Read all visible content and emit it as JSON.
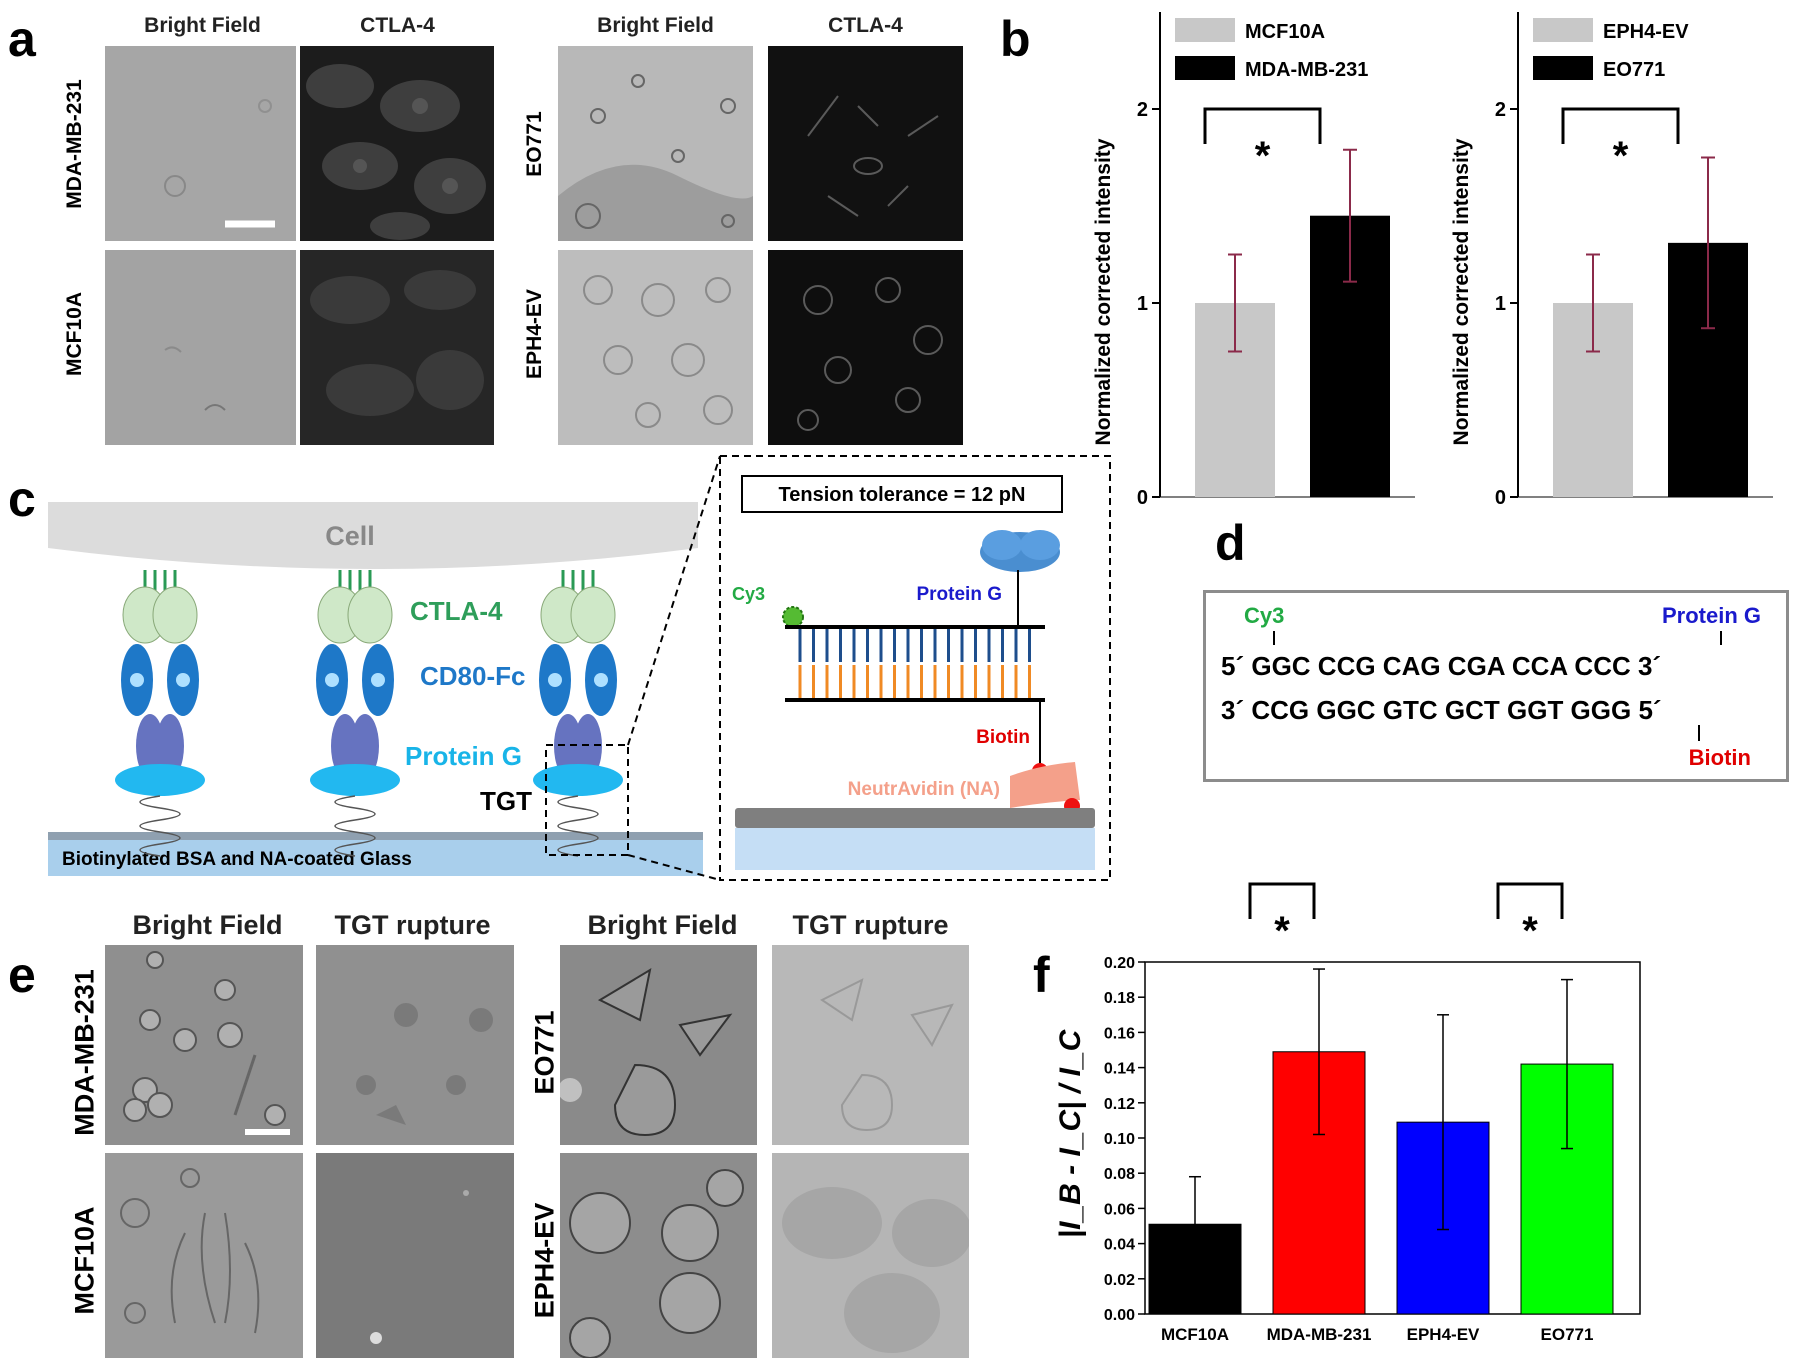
{
  "figure": {
    "letters": {
      "a": "a",
      "b": "b",
      "c": "c",
      "d": "d",
      "e": "e",
      "f": "f"
    },
    "panel_a": {
      "col_heads": [
        "Bright Field",
        "CTLA-4",
        "Bright Field",
        "CTLA-4"
      ],
      "row_labels_left": [
        "MDA-MB-231",
        "MCF10A"
      ],
      "row_labels_right": [
        "EO771",
        "EPH4-EV"
      ]
    },
    "panel_c": {
      "cell_label": "Cell",
      "ctla4_label": "CTLA-4",
      "cd80_label": "CD80-Fc",
      "proteinG_label": "Protein G",
      "tgt_label": "TGT",
      "glass_label": "Biotinylated BSA and NA-coated Glass",
      "inset": {
        "tension": "Tension tolerance = 12 pN",
        "cy3": "Cy3",
        "proteinG": "Protein G",
        "biotin": "Biotin",
        "neutravidin": "NeutrAvidin (NA)"
      }
    },
    "panel_d": {
      "cy3": "Cy3",
      "proteinG": "Protein G",
      "line1": "5´ GGC CCG CAG CGA CCA CCC 3´",
      "line2": "3´ CCG GGC GTC GCT GGT GGG 5´",
      "biotin": "Biotin"
    },
    "panel_e": {
      "col_heads": [
        "Bright Field",
        "TGT rupture",
        "Bright Field",
        "TGT rupture"
      ],
      "row_labels_left": [
        "MDA-MB-231",
        "MCF10A"
      ],
      "row_labels_right": [
        "EO771",
        "EPH4-EV"
      ]
    }
  },
  "colors": {
    "grey_bar": "#c8c8c8",
    "black_bar": "#000000",
    "error_bar_b": "#8b2a4a",
    "cy3_green": "#22aa44",
    "protein_g_blue": "#1a1acc",
    "biotin_red": "#e00000",
    "ctla4_green": "#2e9e5a",
    "cd80_blue": "#1e78c8",
    "protein_g_cyan": "#18b4e8",
    "neutravidin_pink": "#f4a08a",
    "f_red": "#ff0000",
    "f_blue": "#0000ff",
    "f_green": "#00ff00"
  },
  "chart_data": [
    {
      "type": "bar",
      "panel": "b-left",
      "categories": [
        "MCF10A",
        "MDA-MB-231"
      ],
      "values": [
        1.0,
        1.45
      ],
      "errors": [
        0.25,
        0.34
      ],
      "ylabel": "Normalized corrected intensity",
      "ylim": [
        0,
        2.5
      ],
      "yticks": [
        0,
        1,
        2
      ],
      "legend": [
        "MCF10A",
        "MDA-MB-231"
      ],
      "significance": "*"
    },
    {
      "type": "bar",
      "panel": "b-right",
      "categories": [
        "EPH4-EV",
        "EO771"
      ],
      "values": [
        1.0,
        1.31
      ],
      "errors": [
        0.25,
        0.44
      ],
      "ylabel": "Normalized corrected intensity",
      "ylim": [
        0,
        2.5
      ],
      "yticks": [
        0,
        1,
        2
      ],
      "legend": [
        "EPH4-EV",
        "EO771"
      ],
      "significance": "*"
    },
    {
      "type": "bar",
      "panel": "f",
      "categories": [
        "MCF10A",
        "MDA-MB-231",
        "EPH4-EV",
        "EO771"
      ],
      "values": [
        0.051,
        0.149,
        0.109,
        0.142
      ],
      "errors": [
        0.027,
        0.047,
        0.061,
        0.048
      ],
      "ylabel": "|I_B - I_C| / I_C",
      "ylim": [
        0,
        0.2
      ],
      "yticks": [
        "0.00",
        "0.02",
        "0.04",
        "0.06",
        "0.08",
        "0.10",
        "0.12",
        "0.14",
        "0.16",
        "0.18",
        "0.20"
      ],
      "significance": [
        "*",
        "*"
      ]
    }
  ]
}
